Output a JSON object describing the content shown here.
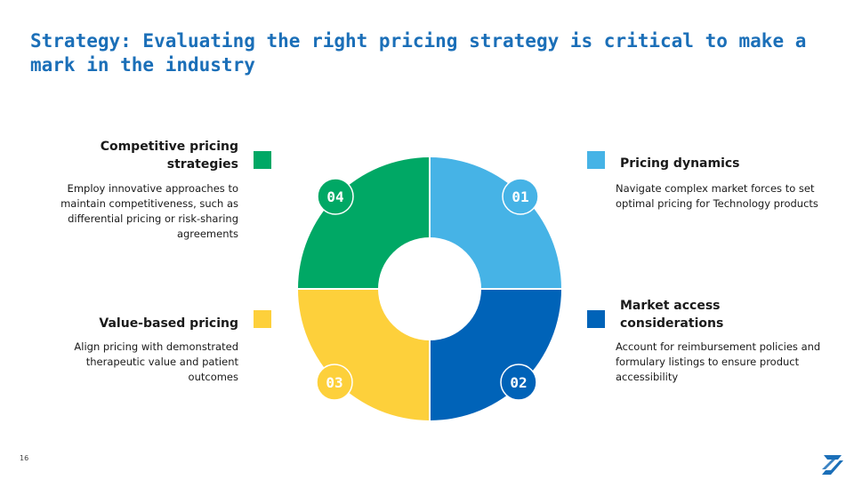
{
  "title": "Strategy: Evaluating the right pricing strategy is critical to make a mark in the industry",
  "segments": [
    {
      "number": "01",
      "title": "Pricing dynamics",
      "desc": "Navigate complex market forces to set optimal pricing for Technology products",
      "color": "#46b3e6"
    },
    {
      "number": "02",
      "title": "Market access considerations",
      "desc": "Account for reimbursement policies and formulary listings to ensure product accessibility",
      "color": "#0063b8"
    },
    {
      "number": "03",
      "title": "Value-based pricing",
      "desc": "Align pricing with demonstrated therapeutic value and patient outcomes",
      "color": "#fdd03b"
    },
    {
      "number": "04",
      "title": "Competitive pricing strategies",
      "desc": "Employ innovative approaches to maintain competitiveness, such as differential pricing or risk-sharing agreements",
      "color": "#00a865"
    }
  ],
  "page_number": "16",
  "colors": {
    "title": "#1b6fb8",
    "accent_logo": "#1b6fb8"
  }
}
